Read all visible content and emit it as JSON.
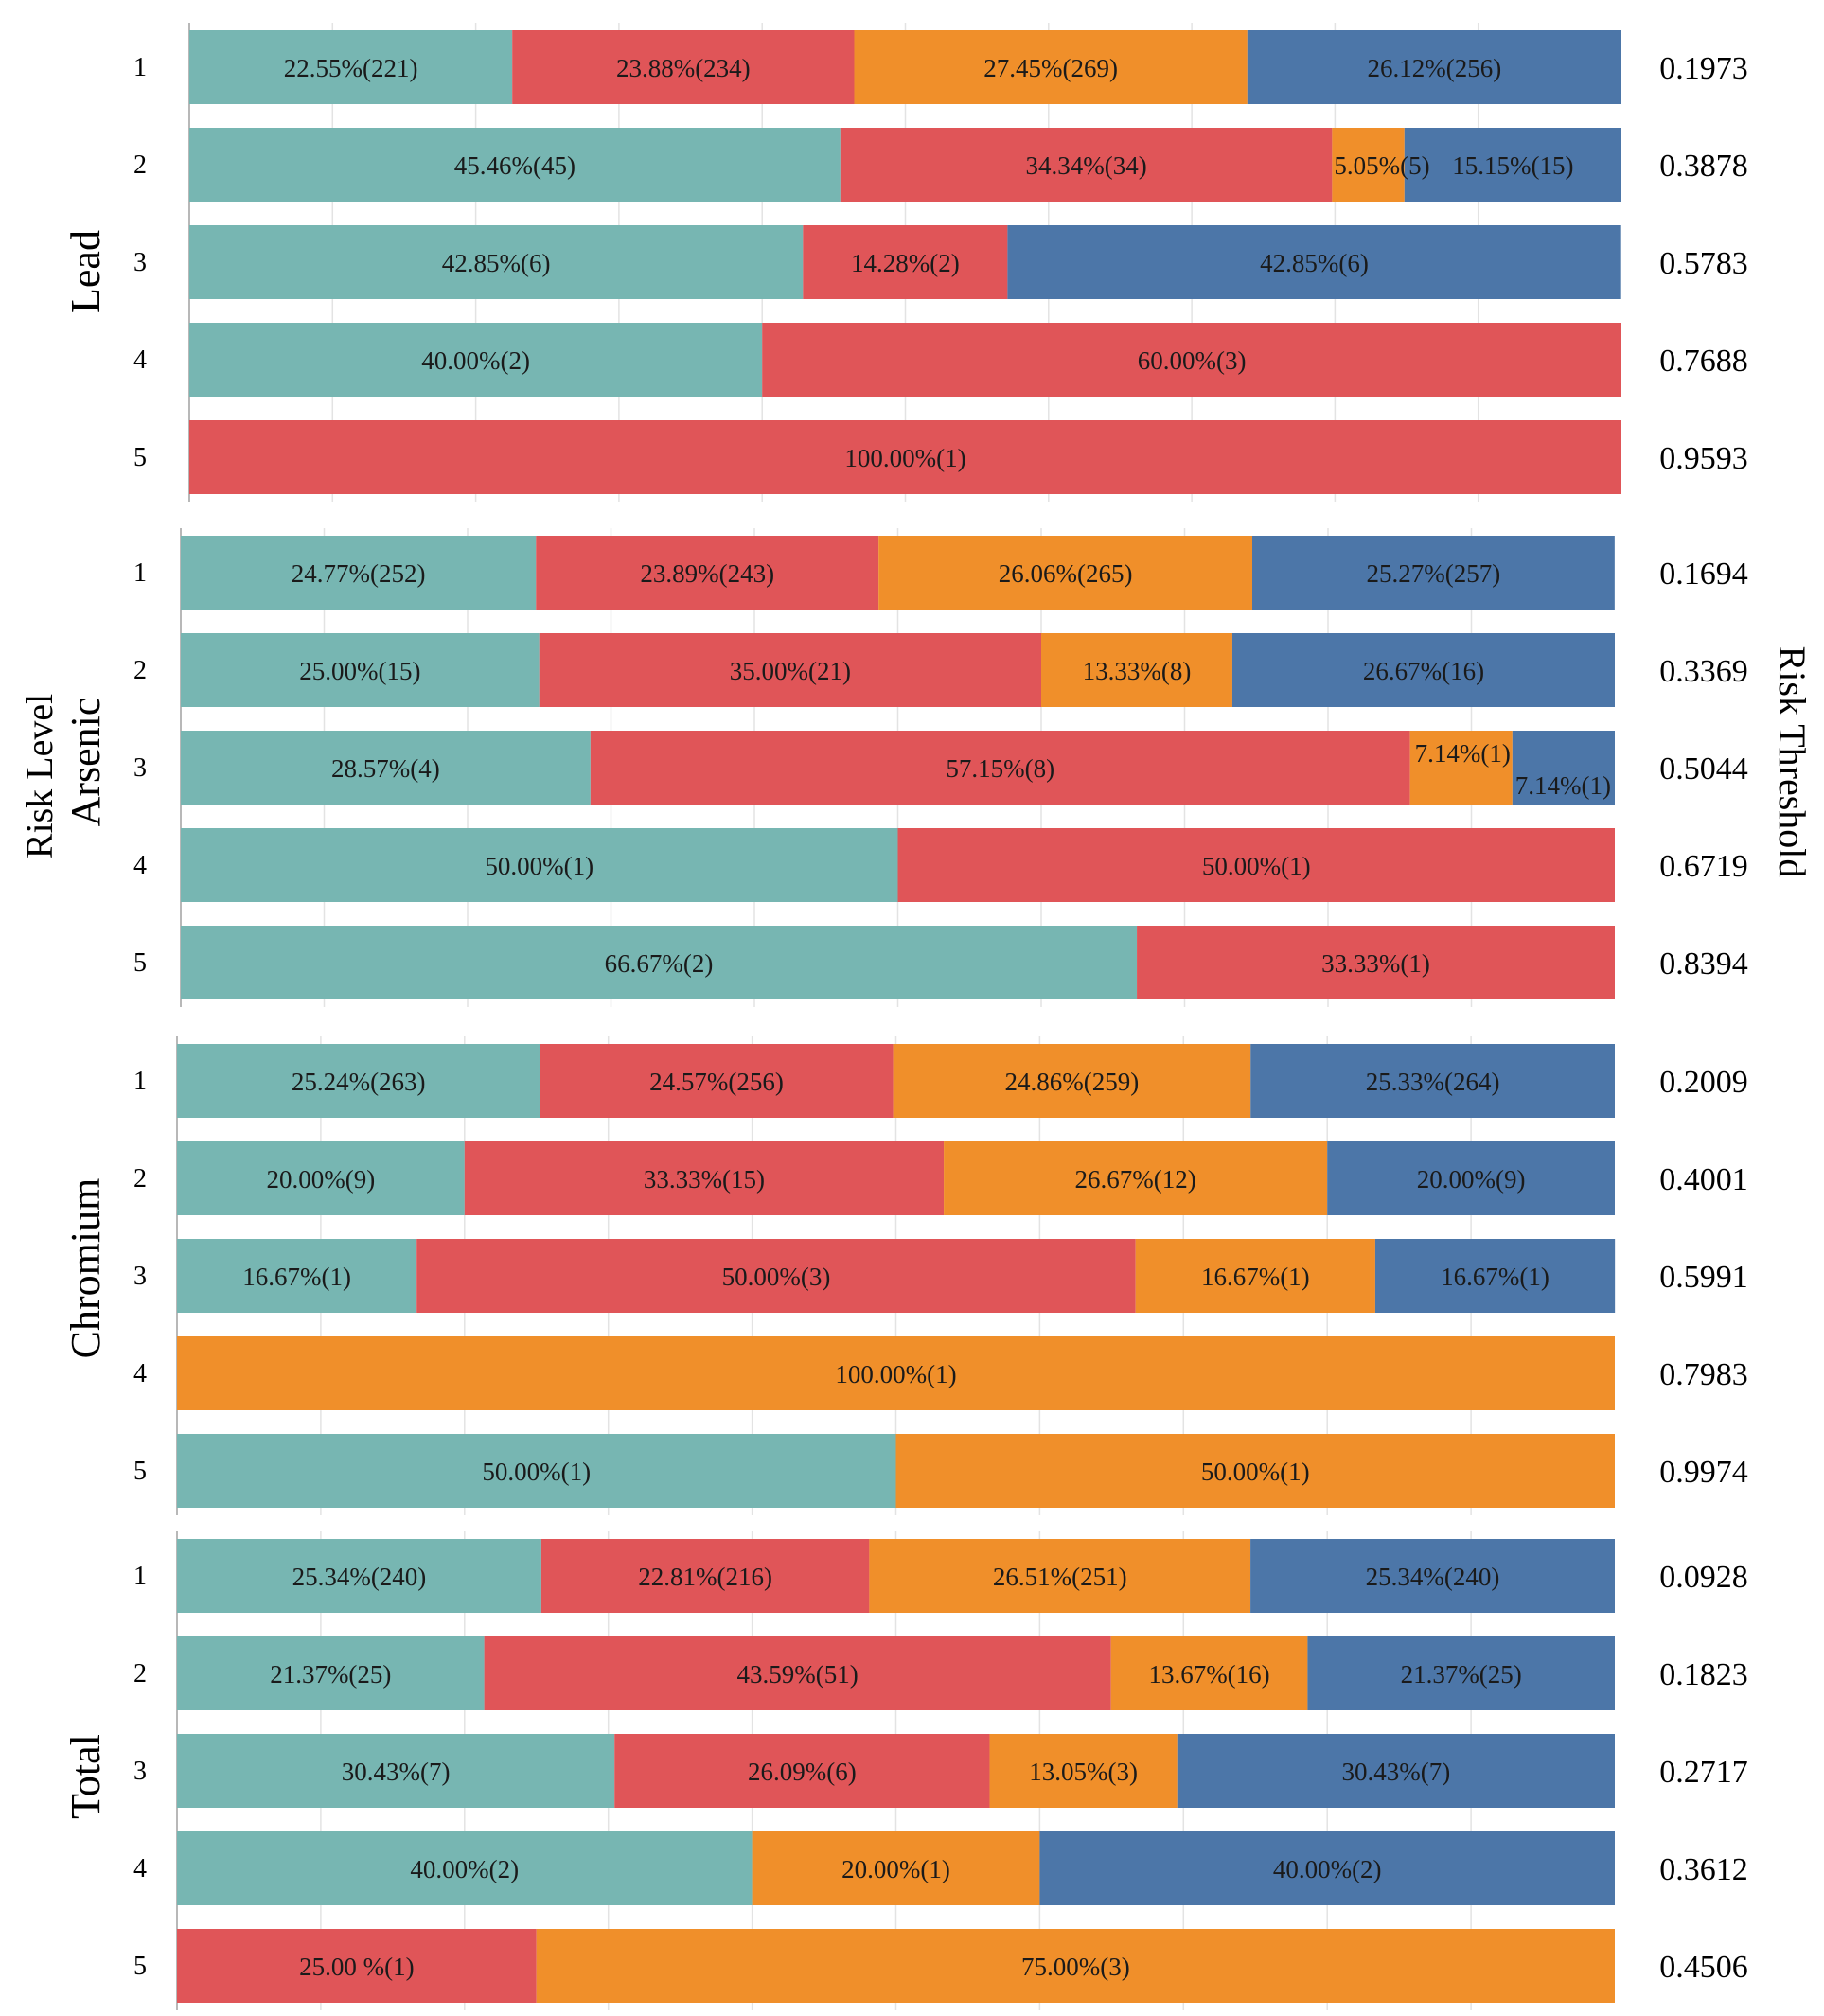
{
  "colors": {
    "teal": "#77b6b2",
    "red": "#e05558",
    "orange": "#f08f2a",
    "blue": "#4c76a8",
    "grid": "#e3e3e3"
  },
  "chart_data": {
    "type": "bar",
    "orientation": "horizontal-stacked-100",
    "ylabel": "Risk Level",
    "right_label": "Risk Threshold",
    "grid": true,
    "panels": [
      {
        "name": "Lead",
        "rows": [
          {
            "level": "1",
            "threshold": "0.1973",
            "segments": [
              {
                "color": "teal",
                "value": 22.55,
                "label": "22.55%(221)"
              },
              {
                "color": "red",
                "value": 23.88,
                "label": "23.88%(234)"
              },
              {
                "color": "orange",
                "value": 27.45,
                "label": "27.45%(269)"
              },
              {
                "color": "blue",
                "value": 26.12,
                "label": "26.12%(256)"
              }
            ]
          },
          {
            "level": "2",
            "threshold": "0.3878",
            "segments": [
              {
                "color": "teal",
                "value": 45.46,
                "label": "45.46%(45)"
              },
              {
                "color": "red",
                "value": 34.34,
                "label": "34.34%(34)"
              },
              {
                "color": "orange",
                "value": 5.05,
                "label": "5.05%(5)"
              },
              {
                "color": "blue",
                "value": 15.15,
                "label": "15.15%(15)"
              }
            ]
          },
          {
            "level": "3",
            "threshold": "0.5783",
            "segments": [
              {
                "color": "teal",
                "value": 42.85,
                "label": "42.85%(6)"
              },
              {
                "color": "red",
                "value": 14.28,
                "label": "14.28%(2)"
              },
              {
                "color": "blue",
                "value": 42.85,
                "label": "42.85%(6)"
              }
            ]
          },
          {
            "level": "4",
            "threshold": "0.7688",
            "segments": [
              {
                "color": "teal",
                "value": 40.0,
                "label": "40.00%(2)"
              },
              {
                "color": "red",
                "value": 60.0,
                "label": "60.00%(3)"
              }
            ]
          },
          {
            "level": "5",
            "threshold": "0.9593",
            "segments": [
              {
                "color": "red",
                "value": 100.0,
                "label": "100.00%(1)"
              }
            ]
          }
        ]
      },
      {
        "name": "Arsenic",
        "rows": [
          {
            "level": "1",
            "threshold": "0.1694",
            "segments": [
              {
                "color": "teal",
                "value": 24.77,
                "label": "24.77%(252)"
              },
              {
                "color": "red",
                "value": 23.89,
                "label": "23.89%(243)"
              },
              {
                "color": "orange",
                "value": 26.06,
                "label": "26.06%(265)"
              },
              {
                "color": "blue",
                "value": 25.27,
                "label": "25.27%(257)"
              }
            ]
          },
          {
            "level": "2",
            "threshold": "0.3369",
            "segments": [
              {
                "color": "teal",
                "value": 25.0,
                "label": "25.00%(15)"
              },
              {
                "color": "red",
                "value": 35.0,
                "label": "35.00%(21)"
              },
              {
                "color": "orange",
                "value": 13.33,
                "label": "13.33%(8)"
              },
              {
                "color": "blue",
                "value": 26.67,
                "label": "26.67%(16)"
              }
            ]
          },
          {
            "level": "3",
            "threshold": "0.5044",
            "segments": [
              {
                "color": "teal",
                "value": 28.57,
                "label": "28.57%(4)"
              },
              {
                "color": "red",
                "value": 57.15,
                "label": "57.15%(8)"
              },
              {
                "color": "orange",
                "value": 7.14,
                "label": "7.14%(1)"
              },
              {
                "color": "blue",
                "value": 7.14,
                "label": "7.14%(1)"
              }
            ]
          },
          {
            "level": "4",
            "threshold": "0.6719",
            "segments": [
              {
                "color": "teal",
                "value": 50.0,
                "label": "50.00%(1)"
              },
              {
                "color": "red",
                "value": 50.0,
                "label": "50.00%(1)"
              }
            ]
          },
          {
            "level": "5",
            "threshold": "0.8394",
            "segments": [
              {
                "color": "teal",
                "value": 66.67,
                "label": "66.67%(2)"
              },
              {
                "color": "red",
                "value": 33.33,
                "label": "33.33%(1)"
              }
            ]
          }
        ]
      },
      {
        "name": "Chromium",
        "rows": [
          {
            "level": "1",
            "threshold": "0.2009",
            "segments": [
              {
                "color": "teal",
                "value": 25.24,
                "label": "25.24%(263)"
              },
              {
                "color": "red",
                "value": 24.57,
                "label": "24.57%(256)"
              },
              {
                "color": "orange",
                "value": 24.86,
                "label": "24.86%(259)"
              },
              {
                "color": "blue",
                "value": 25.33,
                "label": "25.33%(264)"
              }
            ]
          },
          {
            "level": "2",
            "threshold": "0.4001",
            "segments": [
              {
                "color": "teal",
                "value": 20.0,
                "label": "20.00%(9)"
              },
              {
                "color": "red",
                "value": 33.33,
                "label": "33.33%(15)"
              },
              {
                "color": "orange",
                "value": 26.67,
                "label": "26.67%(12)"
              },
              {
                "color": "blue",
                "value": 20.0,
                "label": "20.00%(9)"
              }
            ]
          },
          {
            "level": "3",
            "threshold": "0.5991",
            "segments": [
              {
                "color": "teal",
                "value": 16.67,
                "label": "16.67%(1)"
              },
              {
                "color": "red",
                "value": 50.0,
                "label": "50.00%(3)"
              },
              {
                "color": "orange",
                "value": 16.67,
                "label": "16.67%(1)"
              },
              {
                "color": "blue",
                "value": 16.67,
                "label": "16.67%(1)"
              }
            ]
          },
          {
            "level": "4",
            "threshold": "0.7983",
            "segments": [
              {
                "color": "orange",
                "value": 100.0,
                "label": "100.00%(1)"
              }
            ]
          },
          {
            "level": "5",
            "threshold": "0.9974",
            "segments": [
              {
                "color": "teal",
                "value": 50.0,
                "label": "50.00%(1)"
              },
              {
                "color": "orange",
                "value": 50.0,
                "label": "50.00%(1)"
              }
            ]
          }
        ]
      },
      {
        "name": "Total",
        "rows": [
          {
            "level": "1",
            "threshold": "0.0928",
            "segments": [
              {
                "color": "teal",
                "value": 25.34,
                "label": "25.34%(240)"
              },
              {
                "color": "red",
                "value": 22.81,
                "label": "22.81%(216)"
              },
              {
                "color": "orange",
                "value": 26.51,
                "label": "26.51%(251)"
              },
              {
                "color": "blue",
                "value": 25.34,
                "label": "25.34%(240)"
              }
            ]
          },
          {
            "level": "2",
            "threshold": "0.1823",
            "segments": [
              {
                "color": "teal",
                "value": 21.37,
                "label": "21.37%(25)"
              },
              {
                "color": "red",
                "value": 43.59,
                "label": "43.59%(51)"
              },
              {
                "color": "orange",
                "value": 13.67,
                "label": "13.67%(16)"
              },
              {
                "color": "blue",
                "value": 21.37,
                "label": "21.37%(25)"
              }
            ]
          },
          {
            "level": "3",
            "threshold": "0.2717",
            "segments": [
              {
                "color": "teal",
                "value": 30.43,
                "label": "30.43%(7)"
              },
              {
                "color": "red",
                "value": 26.09,
                "label": "26.09%(6)"
              },
              {
                "color": "orange",
                "value": 13.05,
                "label": "13.05%(3)"
              },
              {
                "color": "blue",
                "value": 30.43,
                "label": "30.43%(7)"
              }
            ]
          },
          {
            "level": "4",
            "threshold": "0.3612",
            "segments": [
              {
                "color": "teal",
                "value": 40.0,
                "label": "40.00%(2)"
              },
              {
                "color": "orange",
                "value": 20.0,
                "label": "20.00%(1)"
              },
              {
                "color": "blue",
                "value": 40.0,
                "label": "40.00%(2)"
              }
            ]
          },
          {
            "level": "5",
            "threshold": "0.4506",
            "segments": [
              {
                "color": "red",
                "value": 25.0,
                "label": "25.00 %(1)"
              },
              {
                "color": "orange",
                "value": 75.0,
                "label": "75.00%(3)"
              }
            ]
          }
        ]
      }
    ]
  }
}
